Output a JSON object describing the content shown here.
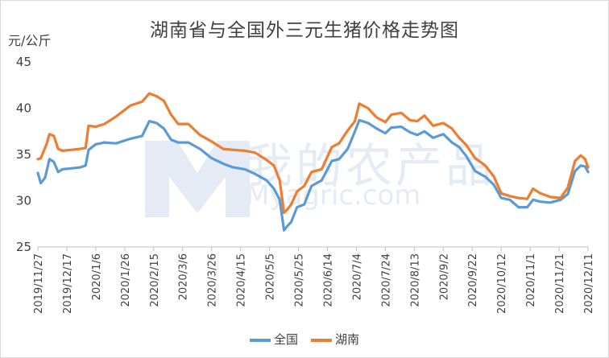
{
  "chart_data": {
    "type": "line",
    "title": "湖南省与全国外三元生猪价格走势图",
    "ylabel": "元/公斤",
    "ylim": [
      25,
      45
    ],
    "yticks": [
      25,
      30,
      35,
      40,
      45
    ],
    "xticks": [
      "2019/11/27",
      "2019/12/17",
      "2020/1/6",
      "2020/1/26",
      "2020/2/15",
      "2020/3/6",
      "2020/3/26",
      "2020/4/15",
      "2020/5/5",
      "2020/5/25",
      "2020/6/14",
      "2020/7/4",
      "2020/7/24",
      "2020/8/13",
      "2020/9/2",
      "2020/9/22",
      "2020/10/12",
      "2020/11/1",
      "2020/11/21",
      "2020/12/11"
    ],
    "series": [
      {
        "name": "全国",
        "color": "#5b9bd5",
        "points": [
          [
            "2019/11/27",
            33.0
          ],
          [
            "2019/11/29",
            31.9
          ],
          [
            "2019/12/2",
            32.5
          ],
          [
            "2019/12/5",
            34.5
          ],
          [
            "2019/12/8",
            34.2
          ],
          [
            "2019/12/11",
            33.1
          ],
          [
            "2019/12/14",
            33.4
          ],
          [
            "2019/12/20",
            33.5
          ],
          [
            "2019/12/26",
            33.6
          ],
          [
            "2019/12/30",
            33.8
          ],
          [
            "2020/1/1",
            35.5
          ],
          [
            "2020/1/6",
            36.1
          ],
          [
            "2020/1/12",
            36.3
          ],
          [
            "2020/1/20",
            36.2
          ],
          [
            "2020/1/30",
            36.7
          ],
          [
            "2020/2/7",
            37.0
          ],
          [
            "2020/2/12",
            38.6
          ],
          [
            "2020/2/17",
            38.4
          ],
          [
            "2020/2/22",
            37.8
          ],
          [
            "2020/2/27",
            36.6
          ],
          [
            "2020/3/3",
            36.3
          ],
          [
            "2020/3/10",
            36.3
          ],
          [
            "2020/3/18",
            35.6
          ],
          [
            "2020/3/26",
            34.6
          ],
          [
            "2020/4/3",
            34.0
          ],
          [
            "2020/4/10",
            33.6
          ],
          [
            "2020/4/18",
            33.4
          ],
          [
            "2020/4/25",
            32.9
          ],
          [
            "2020/5/3",
            32.2
          ],
          [
            "2020/5/8",
            31.3
          ],
          [
            "2020/5/12",
            30.1
          ],
          [
            "2020/5/15",
            26.8
          ],
          [
            "2020/5/17",
            27.2
          ],
          [
            "2020/5/20",
            27.7
          ],
          [
            "2020/5/24",
            29.3
          ],
          [
            "2020/5/29",
            29.6
          ],
          [
            "2020/6/3",
            31.6
          ],
          [
            "2020/6/10",
            32.2
          ],
          [
            "2020/6/17",
            34.3
          ],
          [
            "2020/6/22",
            34.5
          ],
          [
            "2020/6/28",
            35.6
          ],
          [
            "2020/7/3",
            37.5
          ],
          [
            "2020/7/6",
            38.7
          ],
          [
            "2020/7/12",
            38.4
          ],
          [
            "2020/7/18",
            37.8
          ],
          [
            "2020/7/24",
            37.3
          ],
          [
            "2020/7/28",
            37.9
          ],
          [
            "2020/8/4",
            38.0
          ],
          [
            "2020/8/10",
            37.4
          ],
          [
            "2020/8/15",
            37.1
          ],
          [
            "2020/8/20",
            37.5
          ],
          [
            "2020/8/26",
            36.8
          ],
          [
            "2020/9/2",
            37.2
          ],
          [
            "2020/9/8",
            36.3
          ],
          [
            "2020/9/13",
            35.8
          ],
          [
            "2020/9/18",
            34.8
          ],
          [
            "2020/9/24",
            33.2
          ],
          [
            "2020/10/1",
            32.6
          ],
          [
            "2020/10/7",
            31.7
          ],
          [
            "2020/10/12",
            30.3
          ],
          [
            "2020/10/18",
            30.1
          ],
          [
            "2020/10/24",
            29.3
          ],
          [
            "2020/10/30",
            29.3
          ],
          [
            "2020/11/3",
            30.1
          ],
          [
            "2020/11/8",
            29.9
          ],
          [
            "2020/11/15",
            29.8
          ],
          [
            "2020/11/22",
            30.1
          ],
          [
            "2020/11/27",
            30.7
          ],
          [
            "2020/12/2",
            33.2
          ],
          [
            "2020/12/6",
            33.8
          ],
          [
            "2020/12/9",
            33.7
          ],
          [
            "2020/12/11",
            33.1
          ]
        ]
      },
      {
        "name": "湖南",
        "color": "#ed7d31",
        "points": [
          [
            "2019/11/27",
            34.5
          ],
          [
            "2019/11/29",
            34.6
          ],
          [
            "2019/12/3",
            36.1
          ],
          [
            "2019/12/5",
            37.2
          ],
          [
            "2019/12/8",
            37.0
          ],
          [
            "2019/12/11",
            35.6
          ],
          [
            "2019/12/14",
            35.4
          ],
          [
            "2019/12/20",
            35.5
          ],
          [
            "2019/12/26",
            35.6
          ],
          [
            "2019/12/30",
            35.7
          ],
          [
            "2020/1/1",
            38.1
          ],
          [
            "2020/1/6",
            38.0
          ],
          [
            "2020/1/12",
            38.3
          ],
          [
            "2020/1/20",
            39.1
          ],
          [
            "2020/1/30",
            40.3
          ],
          [
            "2020/2/7",
            40.7
          ],
          [
            "2020/2/12",
            41.6
          ],
          [
            "2020/2/17",
            41.3
          ],
          [
            "2020/2/22",
            40.8
          ],
          [
            "2020/2/27",
            39.3
          ],
          [
            "2020/3/3",
            38.3
          ],
          [
            "2020/3/10",
            38.3
          ],
          [
            "2020/3/18",
            37.1
          ],
          [
            "2020/3/26",
            36.4
          ],
          [
            "2020/4/3",
            35.6
          ],
          [
            "2020/4/10",
            35.5
          ],
          [
            "2020/4/18",
            35.4
          ],
          [
            "2020/4/25",
            35.2
          ],
          [
            "2020/5/3",
            34.4
          ],
          [
            "2020/5/8",
            33.8
          ],
          [
            "2020/5/12",
            32.2
          ],
          [
            "2020/5/15",
            28.7
          ],
          [
            "2020/5/17",
            29.0
          ],
          [
            "2020/5/20",
            29.6
          ],
          [
            "2020/5/24",
            31.0
          ],
          [
            "2020/5/29",
            31.6
          ],
          [
            "2020/6/3",
            33.1
          ],
          [
            "2020/6/10",
            33.4
          ],
          [
            "2020/6/17",
            35.8
          ],
          [
            "2020/6/22",
            36.2
          ],
          [
            "2020/6/28",
            37.6
          ],
          [
            "2020/7/3",
            38.6
          ],
          [
            "2020/7/6",
            40.5
          ],
          [
            "2020/7/12",
            40.0
          ],
          [
            "2020/7/18",
            39.0
          ],
          [
            "2020/7/24",
            38.5
          ],
          [
            "2020/7/28",
            39.3
          ],
          [
            "2020/8/4",
            39.5
          ],
          [
            "2020/8/10",
            38.7
          ],
          [
            "2020/8/15",
            38.6
          ],
          [
            "2020/8/20",
            39.2
          ],
          [
            "2020/8/26",
            38.1
          ],
          [
            "2020/9/2",
            38.4
          ],
          [
            "2020/9/8",
            37.8
          ],
          [
            "2020/9/13",
            36.8
          ],
          [
            "2020/9/18",
            36.0
          ],
          [
            "2020/9/24",
            34.6
          ],
          [
            "2020/10/1",
            33.8
          ],
          [
            "2020/10/7",
            32.6
          ],
          [
            "2020/10/12",
            30.8
          ],
          [
            "2020/10/18",
            30.5
          ],
          [
            "2020/10/24",
            30.3
          ],
          [
            "2020/10/30",
            30.2
          ],
          [
            "2020/11/3",
            31.3
          ],
          [
            "2020/11/8",
            30.8
          ],
          [
            "2020/11/15",
            30.4
          ],
          [
            "2020/11/22",
            30.3
          ],
          [
            "2020/11/27",
            31.4
          ],
          [
            "2020/12/2",
            34.3
          ],
          [
            "2020/12/6",
            34.9
          ],
          [
            "2020/12/9",
            34.5
          ],
          [
            "2020/12/11",
            33.6
          ]
        ]
      }
    ],
    "grid": false,
    "legend_position": "bottom"
  },
  "watermark": {
    "text_cn": "我的农产品",
    "text_en": "Myagric.com",
    "color": "#3b6fb5"
  }
}
